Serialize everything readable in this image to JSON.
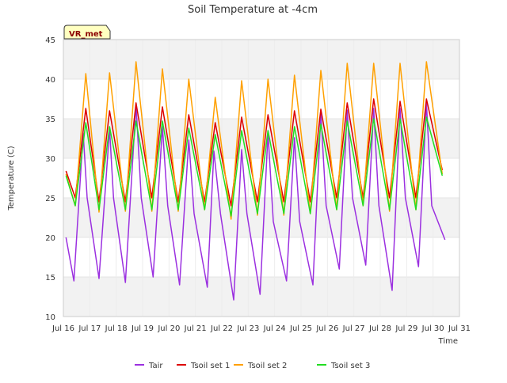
{
  "chart_data": {
    "type": "line",
    "title": "Soil Temperature at -4cm",
    "xlabel": "Time",
    "ylabel": "Temperature (C)",
    "badge": "VR_met",
    "xlim": [
      16,
      31
    ],
    "ylim": [
      10,
      45
    ],
    "x_ticks": [
      {
        "v": 16,
        "label": "Jul 16"
      },
      {
        "v": 17,
        "label": "Jul 17"
      },
      {
        "v": 18,
        "label": "Jul 18"
      },
      {
        "v": 19,
        "label": "Jul 19"
      },
      {
        "v": 20,
        "label": "Jul 20"
      },
      {
        "v": 21,
        "label": "Jul 21"
      },
      {
        "v": 22,
        "label": "Jul 22"
      },
      {
        "v": 23,
        "label": "Jul 23"
      },
      {
        "v": 24,
        "label": "Jul 24"
      },
      {
        "v": 25,
        "label": "Jul 25"
      },
      {
        "v": 26,
        "label": "Jul 26"
      },
      {
        "v": 27,
        "label": "Jul 27"
      },
      {
        "v": 28,
        "label": "Jul 28"
      },
      {
        "v": 29,
        "label": "Jul 29"
      },
      {
        "v": 30,
        "label": "Jul 30"
      },
      {
        "v": 31,
        "label": "Jul 31"
      }
    ],
    "y_ticks": [
      10,
      15,
      20,
      25,
      30,
      35,
      40,
      45
    ],
    "grid": true,
    "legend_position": "bottom",
    "series": [
      {
        "name": "Tair",
        "color": "#9b30e0",
        "x": [
          16.1,
          16.4,
          16.75,
          16.9,
          17.35,
          17.75,
          17.9,
          18.35,
          18.75,
          18.95,
          19.4,
          19.75,
          19.95,
          20.4,
          20.75,
          20.95,
          21.45,
          21.7,
          21.95,
          22.45,
          22.75,
          22.95,
          23.45,
          23.75,
          23.95,
          24.45,
          24.75,
          24.95,
          25.45,
          25.75,
          25.95,
          26.45,
          26.75,
          26.95,
          27.45,
          27.75,
          27.95,
          28.45,
          28.75,
          28.95,
          29.45,
          29.75,
          29.95,
          30.45
        ],
        "y": [
          20,
          14.5,
          33.2,
          25,
          14.8,
          33.7,
          25,
          14.3,
          36.8,
          25,
          15,
          34,
          24,
          14,
          32.3,
          23,
          13.7,
          30.9,
          23,
          12.1,
          31.1,
          23,
          12.8,
          33.2,
          22,
          14.5,
          32.6,
          22,
          14,
          35.6,
          24,
          16,
          36.1,
          25,
          16.5,
          36.3,
          24,
          13.3,
          36.3,
          25,
          16.3,
          37,
          24,
          19.7
        ]
      },
      {
        "name": "Tsoil set 1",
        "color": "#dd0000",
        "x": [
          16.1,
          16.45,
          16.85,
          17.35,
          17.75,
          18.35,
          18.75,
          19.35,
          19.75,
          20.35,
          20.75,
          21.35,
          21.75,
          22.35,
          22.75,
          23.35,
          23.75,
          24.35,
          24.75,
          25.35,
          25.75,
          26.35,
          26.75,
          27.35,
          27.75,
          28.35,
          28.75,
          29.35,
          29.75,
          30.35
        ],
        "y": [
          28.4,
          25,
          36.3,
          24.5,
          36,
          24.5,
          37,
          25,
          36.5,
          24.5,
          35.5,
          24.5,
          34.5,
          24,
          35.2,
          24.5,
          35.5,
          24.5,
          36,
          24.5,
          36.2,
          25,
          37,
          25,
          37.5,
          25,
          37.2,
          25,
          37.5,
          28.5
        ]
      },
      {
        "name": "Tsoil set 2",
        "color": "#ffa000",
        "x": [
          16.1,
          16.45,
          16.85,
          17.35,
          17.75,
          18.35,
          18.75,
          19.35,
          19.75,
          20.35,
          20.75,
          21.35,
          21.75,
          22.35,
          22.75,
          23.35,
          23.75,
          24.35,
          24.75,
          25.35,
          25.75,
          26.35,
          26.75,
          27.35,
          27.75,
          28.35,
          28.75,
          29.35,
          29.75,
          30.35
        ],
        "y": [
          28,
          24,
          40.7,
          23.2,
          40.8,
          23.3,
          42.2,
          23.3,
          41.3,
          23.3,
          40,
          23.5,
          37.7,
          22.3,
          39.8,
          22.8,
          40,
          22.8,
          40.5,
          23,
          41.1,
          23.5,
          42,
          24,
          42,
          23.3,
          42,
          23.5,
          42.2,
          28
        ]
      },
      {
        "name": "Tsoil set 3",
        "color": "#22dd22",
        "x": [
          16.1,
          16.45,
          16.85,
          17.35,
          17.75,
          18.35,
          18.75,
          19.35,
          19.75,
          20.35,
          20.75,
          21.35,
          21.75,
          22.35,
          22.75,
          23.35,
          23.75,
          24.35,
          24.75,
          25.35,
          25.75,
          26.35,
          26.75,
          27.35,
          27.75,
          28.35,
          28.75,
          29.35,
          29.75,
          30.35
        ],
        "y": [
          27.8,
          24,
          34.5,
          23.5,
          34,
          23.5,
          34.7,
          23.5,
          34.7,
          23.5,
          33.8,
          23.5,
          33,
          22.7,
          33.5,
          23,
          33.5,
          23,
          34,
          23,
          34.3,
          23.5,
          34.7,
          24,
          35,
          23.5,
          35,
          23.5,
          35.2,
          27.8
        ]
      }
    ]
  }
}
